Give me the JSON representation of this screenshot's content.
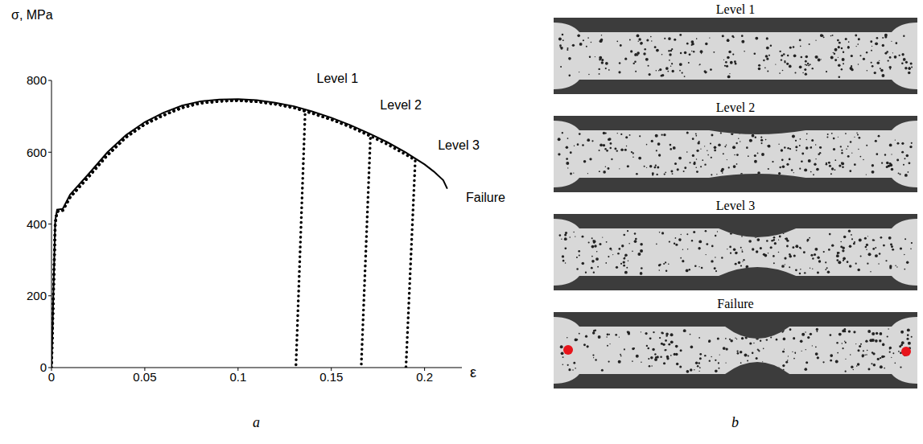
{
  "chart_data": {
    "type": "line",
    "panel": "a",
    "y_label": "σ, MPa",
    "x_label": "ε",
    "xlim": [
      0,
      0.22
    ],
    "xticks": [
      0,
      0.05,
      0.1,
      0.15,
      0.2
    ],
    "ylim": [
      0,
      800
    ],
    "yticks": [
      0,
      200,
      400,
      600,
      800
    ],
    "grid": false,
    "series": [
      {
        "color": "#000000",
        "line_style": "solid",
        "x": [
          0,
          0.002,
          0.003,
          0.006,
          0.01,
          0.02,
          0.03,
          0.04,
          0.05,
          0.06,
          0.07,
          0.08,
          0.09,
          0.1,
          0.11,
          0.12,
          0.13,
          0.14,
          0.15,
          0.16,
          0.17,
          0.18,
          0.19,
          0.2,
          0.205,
          0.21,
          0.212
        ],
        "values": [
          0,
          410,
          440,
          442,
          482,
          540,
          600,
          648,
          684,
          710,
          730,
          742,
          747,
          748,
          745,
          738,
          728,
          713,
          696,
          676,
          653,
          628,
          599,
          566,
          546,
          522,
          500
        ]
      },
      {
        "color": "#000000",
        "line_style": "dotted",
        "x": [
          0,
          0.002,
          0.003,
          0.006,
          0.01,
          0.02,
          0.03,
          0.04,
          0.05,
          0.06,
          0.07,
          0.08,
          0.09,
          0.1,
          0.11,
          0.12,
          0.13,
          0.136,
          0.131
        ],
        "values": [
          0,
          400,
          435,
          438,
          475,
          532,
          592,
          642,
          678,
          703,
          724,
          737,
          742,
          744,
          741,
          734,
          724,
          716,
          0
        ]
      },
      {
        "color": "#000000",
        "line_style": "dotted",
        "x": [
          0,
          0.002,
          0.003,
          0.006,
          0.01,
          0.02,
          0.03,
          0.04,
          0.05,
          0.06,
          0.07,
          0.08,
          0.09,
          0.1,
          0.11,
          0.12,
          0.13,
          0.14,
          0.15,
          0.16,
          0.171,
          0.166
        ],
        "values": [
          0,
          400,
          435,
          438,
          475,
          532,
          592,
          642,
          678,
          703,
          724,
          737,
          742,
          744,
          741,
          734,
          724,
          708,
          691,
          671,
          646,
          0
        ]
      },
      {
        "color": "#000000",
        "line_style": "dotted",
        "x": [
          0,
          0.002,
          0.003,
          0.006,
          0.01,
          0.02,
          0.03,
          0.04,
          0.05,
          0.06,
          0.07,
          0.08,
          0.09,
          0.1,
          0.11,
          0.12,
          0.13,
          0.14,
          0.15,
          0.16,
          0.17,
          0.18,
          0.19,
          0.195,
          0.19
        ],
        "values": [
          0,
          400,
          435,
          438,
          475,
          532,
          592,
          642,
          678,
          703,
          724,
          737,
          742,
          744,
          741,
          734,
          724,
          708,
          691,
          671,
          647,
          622,
          593,
          578,
          0
        ]
      }
    ],
    "annotations": [
      {
        "text": "Level 1",
        "x": 0.14,
        "y": 805
      },
      {
        "text": "Level 2",
        "x": 0.174,
        "y": 733
      },
      {
        "text": "Level 3",
        "x": 0.205,
        "y": 621
      },
      {
        "text": "Failure",
        "x": 0.22,
        "y": 475
      }
    ]
  },
  "photos": {
    "panel": "b",
    "titles": [
      "Level 1",
      "Level 2",
      "Level 3",
      "Failure"
    ]
  }
}
